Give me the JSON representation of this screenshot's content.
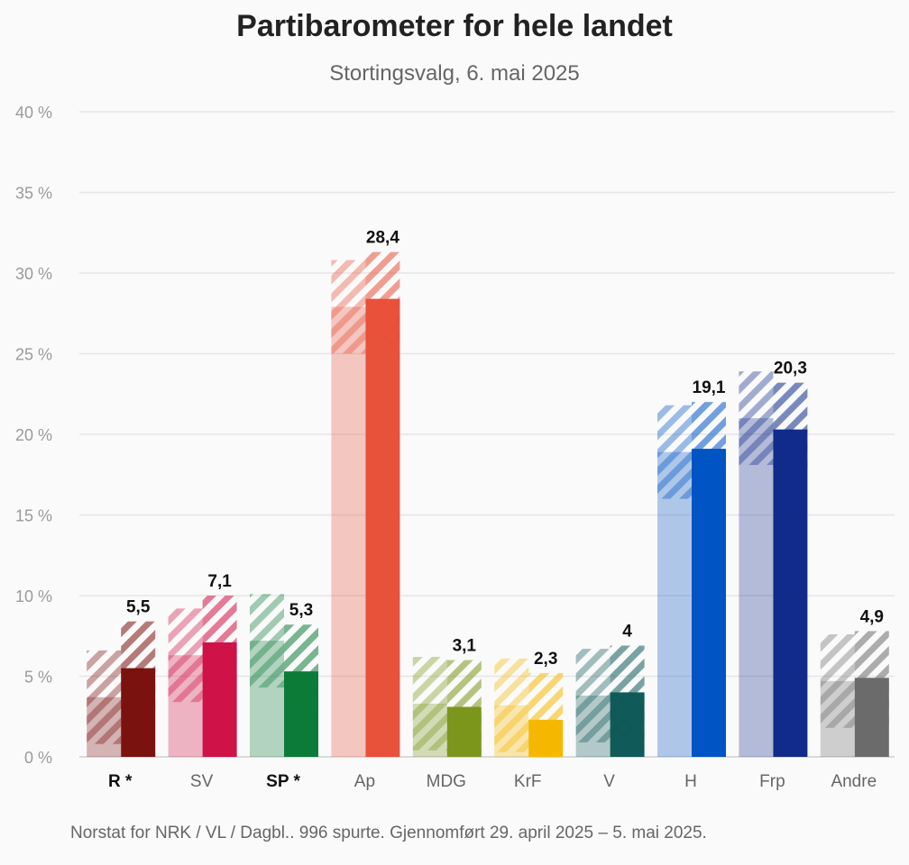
{
  "chart_data": {
    "type": "bar",
    "title": "Partibarometer for hele landet",
    "subtitle": "Stortingsvalg, 6. mai 2025",
    "source": "Norstat for NRK / VL / Dagbl.. 996 spurte. Gjennomført 29. april 2025 – 5. mai 2025.",
    "ylim": [
      0,
      40
    ],
    "yticks": [
      0,
      5,
      10,
      15,
      20,
      25,
      30,
      35,
      40
    ],
    "ytick_labels": [
      "0 %",
      "5 %",
      "10 %",
      "15 %",
      "20 %",
      "25 %",
      "30 %",
      "35 %",
      "40 %"
    ],
    "grid": true,
    "categories": [
      "R *",
      "SV",
      "SP *",
      "Ap",
      "MDG",
      "KrF",
      "V",
      "H",
      "Frp",
      "Andre"
    ],
    "bold_categories": [
      "R *",
      "SP *"
    ],
    "series": [
      {
        "values": [
          3.7,
          6.3,
          7.2,
          27.9,
          3.3,
          3.2,
          3.8,
          18.9,
          21.0,
          4.7
        ]
      },
      {
        "values": [
          5.5,
          7.1,
          5.3,
          28.4,
          3.1,
          2.3,
          4.0,
          19.1,
          20.3,
          4.9
        ]
      }
    ],
    "data_labels": [
      "5,5",
      "7,1",
      "5,3",
      "28,4",
      "3,1",
      "2,3",
      "4",
      "19,1",
      "20,3",
      "4,9"
    ],
    "colors": [
      "#7a1210",
      "#cf1247",
      "#0c7b39",
      "#e8513a",
      "#7c961b",
      "#f5b800",
      "#115a5a",
      "#0154c4",
      "#112b8a",
      "#6b6b6b"
    ]
  }
}
